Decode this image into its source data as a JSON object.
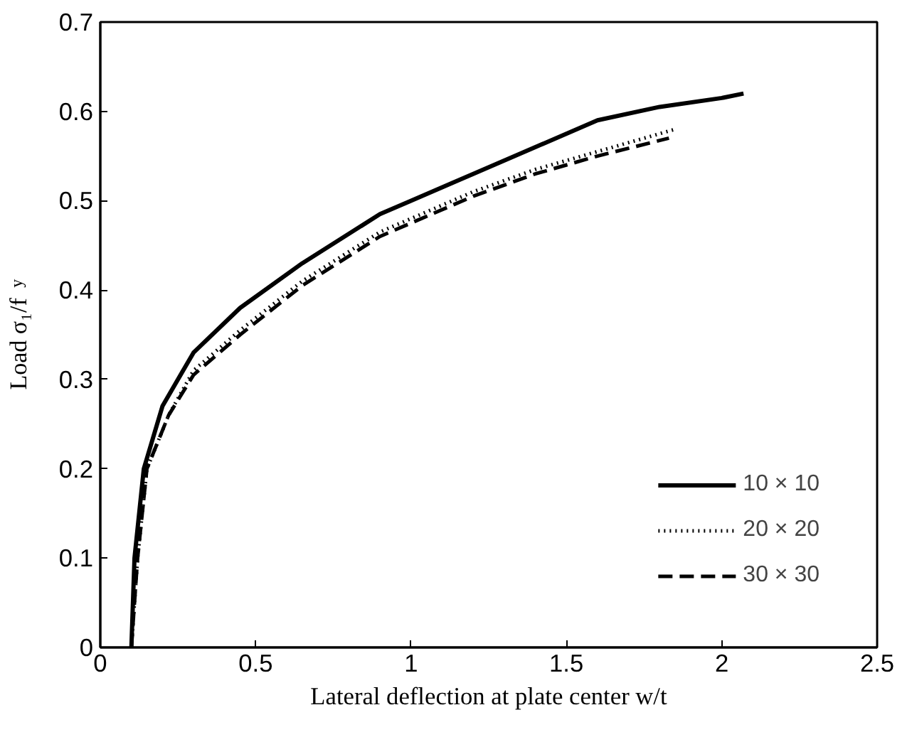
{
  "chart_data": {
    "type": "line",
    "xlabel": "Lateral deflection at plate center w/t",
    "ylabel": "Load σ₁/f$_{y}$",
    "xlim": [
      0,
      2.5
    ],
    "xticks": [
      0,
      0.5,
      1,
      1.5,
      2,
      2.5
    ],
    "ylim": [
      0,
      0.7
    ],
    "yticks": [
      0,
      0.1,
      0.2,
      0.3,
      0.4,
      0.5,
      0.6,
      0.7
    ],
    "grid": false,
    "legend": "bottom right",
    "series": [
      {
        "name": "10 × 10",
        "color": "#000000",
        "line_style": "solid",
        "x": [
          0.1,
          0.11,
          0.14,
          0.2,
          0.3,
          0.45,
          0.65,
          0.9,
          1.0,
          1.2,
          1.4,
          1.6,
          1.8,
          2.0,
          2.07
        ],
        "values": [
          0,
          0.1,
          0.2,
          0.27,
          0.33,
          0.38,
          0.43,
          0.485,
          0.5,
          0.53,
          0.56,
          0.59,
          0.605,
          0.615,
          0.62
        ]
      },
      {
        "name": "20 × 20",
        "color": "#000000",
        "line_style": "dotted",
        "x": [
          0.1,
          0.12,
          0.15,
          0.22,
          0.3,
          0.45,
          0.65,
          0.9,
          1.0,
          1.2,
          1.4,
          1.6,
          1.8,
          1.85
        ],
        "values": [
          0,
          0.1,
          0.2,
          0.26,
          0.31,
          0.355,
          0.41,
          0.465,
          0.48,
          0.51,
          0.535,
          0.555,
          0.575,
          0.58
        ]
      },
      {
        "name": "30 × 30",
        "color": "#000000",
        "line_style": "dashed",
        "x": [
          0.1,
          0.12,
          0.15,
          0.22,
          0.3,
          0.45,
          0.65,
          0.9,
          1.0,
          1.2,
          1.4,
          1.6,
          1.83
        ],
        "values": [
          0,
          0.1,
          0.2,
          0.26,
          0.305,
          0.35,
          0.405,
          0.46,
          0.475,
          0.505,
          0.53,
          0.55,
          0.57
        ]
      }
    ]
  }
}
